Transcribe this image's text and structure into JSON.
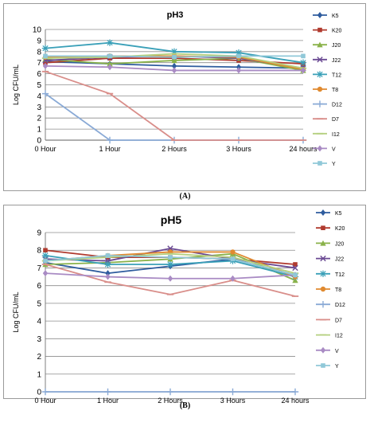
{
  "chart_data": [
    {
      "type": "line",
      "title": "pH3",
      "ylabel": "Log CFU/mL",
      "xlabel": "",
      "categories": [
        "0 Hour",
        "1 Hour",
        "2 Hours",
        "3 Hours",
        "24 hours"
      ],
      "ylim": [
        0,
        10
      ],
      "yticks": [
        0,
        1,
        2,
        3,
        4,
        5,
        6,
        7,
        8,
        9,
        10
      ],
      "grid": true,
      "legend_position": "right",
      "series": [
        {
          "name": "K5",
          "color": "#2E5C9E",
          "marker": "diamond",
          "values": [
            7.1,
            6.9,
            6.7,
            6.6,
            6.5
          ]
        },
        {
          "name": "K20",
          "color": "#B03A2E",
          "marker": "square",
          "values": [
            7.0,
            7.4,
            7.4,
            7.2,
            6.9
          ]
        },
        {
          "name": "J20",
          "color": "#8AB24A",
          "marker": "triangle",
          "values": [
            7.3,
            6.9,
            7.2,
            7.4,
            6.3
          ]
        },
        {
          "name": "J22",
          "color": "#6B4A93",
          "marker": "x",
          "values": [
            7.2,
            7.5,
            7.6,
            7.4,
            6.5
          ]
        },
        {
          "name": "T12",
          "color": "#3AA0B8",
          "marker": "star",
          "values": [
            8.3,
            8.8,
            8.0,
            7.9,
            7.0
          ]
        },
        {
          "name": "T8",
          "color": "#E08A30",
          "marker": "circle",
          "values": [
            7.5,
            7.6,
            7.6,
            7.5,
            6.4
          ]
        },
        {
          "name": "D12",
          "color": "#8AAAD6",
          "marker": "plus",
          "values": [
            4.2,
            0,
            0,
            0,
            0
          ]
        },
        {
          "name": "D7",
          "color": "#D98E8A",
          "marker": "dash",
          "values": [
            6.2,
            4.2,
            0,
            0,
            0
          ]
        },
        {
          "name": "I12",
          "color": "#B5D080",
          "marker": "dash",
          "values": [
            7.4,
            7.5,
            7.8,
            7.6,
            6.5
          ]
        },
        {
          "name": "V",
          "color": "#A98BC4",
          "marker": "diamond",
          "values": [
            6.7,
            6.6,
            6.3,
            6.3,
            6.3
          ]
        },
        {
          "name": "Y",
          "color": "#90C8D8",
          "marker": "square",
          "values": [
            7.6,
            7.6,
            7.5,
            7.6,
            7.6
          ]
        }
      ]
    },
    {
      "type": "line",
      "title": "pH5",
      "ylabel": "Log CFU/mL",
      "xlabel": "",
      "categories": [
        "0 Hour",
        "1 Hour",
        "2 Hours",
        "3 Hours",
        "24 hours"
      ],
      "ylim": [
        0,
        9
      ],
      "yticks": [
        0,
        1,
        2,
        3,
        4,
        5,
        6,
        7,
        8,
        9
      ],
      "grid": true,
      "legend_position": "right",
      "series": [
        {
          "name": "K5",
          "color": "#2E5C9E",
          "marker": "diamond",
          "values": [
            7.3,
            6.7,
            7.1,
            7.5,
            6.6
          ]
        },
        {
          "name": "K20",
          "color": "#B03A2E",
          "marker": "square",
          "values": [
            8.0,
            7.6,
            7.6,
            7.5,
            7.2
          ]
        },
        {
          "name": "J20",
          "color": "#8AB24A",
          "marker": "triangle",
          "values": [
            7.2,
            7.3,
            7.5,
            7.8,
            6.3
          ]
        },
        {
          "name": "J22",
          "color": "#6B4A93",
          "marker": "x",
          "values": [
            7.5,
            7.4,
            8.1,
            7.5,
            7.0
          ]
        },
        {
          "name": "T12",
          "color": "#3AA0B8",
          "marker": "star",
          "values": [
            7.7,
            7.2,
            7.2,
            7.4,
            6.5
          ]
        },
        {
          "name": "T8",
          "color": "#E08A30",
          "marker": "circle",
          "values": [
            7.4,
            7.7,
            7.9,
            7.9,
            6.5
          ]
        },
        {
          "name": "D12",
          "color": "#8AAAD6",
          "marker": "plus",
          "values": [
            0,
            0,
            0,
            0,
            0
          ]
        },
        {
          "name": "D7",
          "color": "#D98E8A",
          "marker": "dash",
          "values": [
            7.2,
            6.2,
            5.5,
            6.3,
            5.4
          ]
        },
        {
          "name": "I12",
          "color": "#B5D080",
          "marker": "dash",
          "values": [
            7.4,
            7.6,
            7.8,
            7.6,
            6.7
          ]
        },
        {
          "name": "V",
          "color": "#A98BC4",
          "marker": "diamond",
          "values": [
            6.7,
            6.5,
            6.4,
            6.4,
            6.6
          ]
        },
        {
          "name": "Y",
          "color": "#90C8D8",
          "marker": "square",
          "values": [
            7.4,
            7.7,
            7.6,
            7.5,
            6.6
          ]
        }
      ]
    }
  ],
  "panel_labels": [
    "(A)",
    "(B)"
  ]
}
